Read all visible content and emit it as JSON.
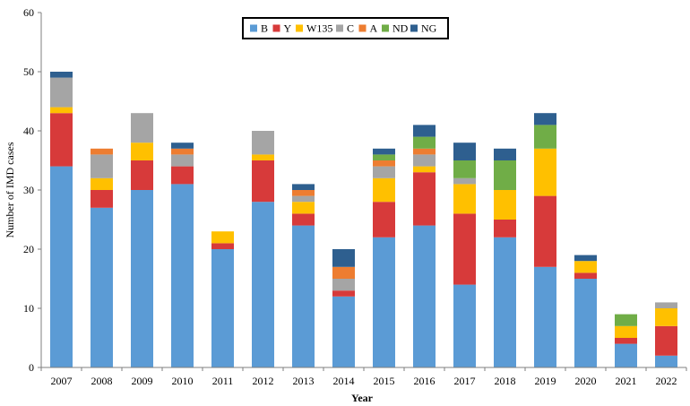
{
  "chart_data": {
    "type": "bar",
    "stacked": true,
    "title": "",
    "xlabel": "Year",
    "ylabel": "Number of IMD cases",
    "ylim": [
      0,
      60
    ],
    "yticks": [
      0,
      10,
      20,
      30,
      40,
      50,
      60
    ],
    "grid": false,
    "legend_position": "top-center",
    "categories": [
      "2007",
      "2008",
      "2009",
      "2010",
      "2011",
      "2012",
      "2013",
      "2014",
      "2015",
      "2016",
      "2017",
      "2018",
      "2019",
      "2020",
      "2021",
      "2022"
    ],
    "series": [
      {
        "name": "B",
        "color": "#5b9bd5",
        "values": [
          34,
          27,
          30,
          31,
          20,
          28,
          24,
          12,
          22,
          24,
          14,
          22,
          17,
          15,
          4,
          2
        ]
      },
      {
        "name": "Y",
        "color": "#d73a3a",
        "values": [
          9,
          3,
          5,
          3,
          1,
          7,
          2,
          1,
          6,
          9,
          12,
          3,
          12,
          1,
          1,
          5
        ]
      },
      {
        "name": "W135",
        "color": "#ffc000",
        "values": [
          1,
          2,
          3,
          0,
          2,
          1,
          2,
          0,
          4,
          1,
          5,
          5,
          8,
          2,
          2,
          3
        ]
      },
      {
        "name": "C",
        "color": "#a5a5a5",
        "values": [
          5,
          4,
          5,
          2,
          0,
          4,
          1,
          2,
          2,
          2,
          1,
          0,
          0,
          0,
          0,
          1
        ]
      },
      {
        "name": "A",
        "color": "#ed7d31",
        "values": [
          0,
          1,
          0,
          1,
          0,
          0,
          1,
          2,
          1,
          1,
          0,
          0,
          0,
          0,
          0,
          0
        ]
      },
      {
        "name": "ND",
        "color": "#70ad47",
        "values": [
          0,
          0,
          0,
          0,
          0,
          0,
          0,
          0,
          1,
          2,
          3,
          5,
          4,
          0,
          2,
          0
        ]
      },
      {
        "name": "NG",
        "color": "#2e5f8f",
        "values": [
          1,
          0,
          0,
          1,
          0,
          0,
          1,
          3,
          1,
          2,
          3,
          2,
          2,
          1,
          0,
          0
        ]
      }
    ]
  }
}
